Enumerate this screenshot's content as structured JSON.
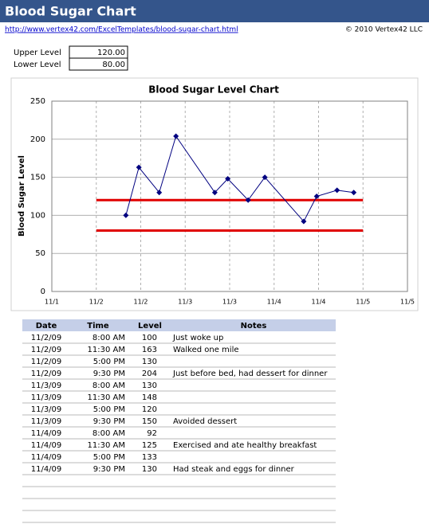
{
  "header": {
    "title": "Blood Sugar Chart",
    "link": "http://www.vertex42.com/ExcelTemplates/blood-sugar-chart.html",
    "copyright": "© 2010 Vertex42 LLC"
  },
  "levels": {
    "labels": [
      "Upper Level",
      "Lower Level"
    ],
    "values": [
      120,
      80
    ],
    "value_labels": [
      "120.00",
      "80.00"
    ]
  },
  "chart_data": {
    "type": "line",
    "title": "Blood Sugar Level Chart",
    "y_label": "Blood Sugar Level",
    "x": [
      2.333,
      2.479,
      2.708,
      2.896,
      3.333,
      3.479,
      3.708,
      3.896,
      4.333,
      4.479,
      4.708,
      4.896
    ],
    "series": [
      {
        "color": "#000080",
        "values": [
          100,
          163,
          130,
          204,
          130,
          148,
          120,
          150,
          92,
          125,
          133,
          130
        ]
      }
    ],
    "xlim": [
      1.5,
      5.5
    ],
    "xticks": [
      {
        "value": 1.5,
        "label": "11/1"
      },
      {
        "value": 2,
        "label": "11/2"
      },
      {
        "value": 2.5,
        "label": "11/2"
      },
      {
        "value": 3,
        "label": "11/3"
      },
      {
        "value": 3.5,
        "label": "11/3"
      },
      {
        "value": 4,
        "label": "11/4"
      },
      {
        "value": 4.5,
        "label": "11/4"
      },
      {
        "value": 5,
        "label": "11/5"
      },
      {
        "value": 5.5,
        "label": "11/5"
      }
    ],
    "ylim": [
      0,
      250
    ],
    "yticks": [
      0,
      50,
      100,
      150,
      200,
      250
    ],
    "grid": true,
    "ref_lines": {
      "x": [
        2,
        5
      ],
      "color": "#e00000"
    }
  },
  "table": {
    "columns": [
      "Date",
      "Time",
      "Level",
      "Notes"
    ],
    "rows": [
      {
        "date": "11/2/09",
        "time": "8:00 AM",
        "level": 100,
        "note": "Just woke up"
      },
      {
        "date": "11/2/09",
        "time": "11:30 AM",
        "level": 163,
        "note": "Walked one mile"
      },
      {
        "date": "11/2/09",
        "time": "5:00 PM",
        "level": 130
      },
      {
        "date": "11/2/09",
        "time": "9:30 PM",
        "level": 204,
        "note": "Just before bed, had dessert for dinner"
      },
      {
        "date": "11/3/09",
        "time": "8:00 AM",
        "level": 130
      },
      {
        "date": "11/3/09",
        "time": "11:30 AM",
        "level": 148
      },
      {
        "date": "11/3/09",
        "time": "5:00 PM",
        "level": 120
      },
      {
        "date": "11/3/09",
        "time": "9:30 PM",
        "level": 150,
        "note": "Avoided dessert"
      },
      {
        "date": "11/4/09",
        "time": "8:00 AM",
        "level": 92
      },
      {
        "date": "11/4/09",
        "time": "11:30 AM",
        "level": 125,
        "note": "Exercised and ate healthy breakfast"
      },
      {
        "date": "11/4/09",
        "time": "5:00 PM",
        "level": 133
      },
      {
        "date": "11/4/09",
        "time": "9:30 PM",
        "level": 130,
        "note": "Had steak and eggs for dinner"
      }
    ]
  }
}
